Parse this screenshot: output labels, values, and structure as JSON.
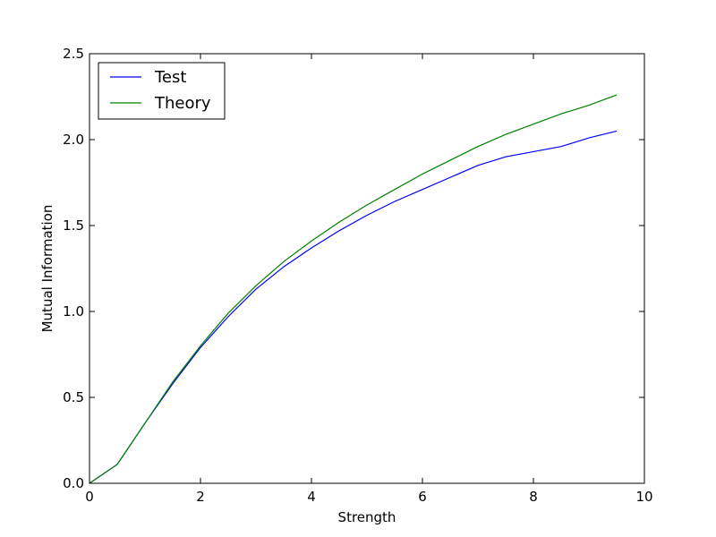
{
  "chart_data": {
    "type": "line",
    "xlabel": "Strength",
    "ylabel": "Mutual Information",
    "xlim": [
      0,
      10
    ],
    "ylim": [
      0,
      2.5
    ],
    "xticks": [
      0,
      2,
      4,
      6,
      8,
      10
    ],
    "xtick_labels": [
      "0",
      "2",
      "4",
      "6",
      "8",
      "10"
    ],
    "yticks": [
      0,
      0.5,
      1,
      1.5,
      2,
      2.5
    ],
    "ytick_labels": [
      "0.0",
      "0.5",
      "1.0",
      "1.5",
      "2.0",
      "2.5"
    ],
    "grid": false,
    "legend_position": "top-left",
    "x": [
      0,
      0.5,
      1.0,
      1.5,
      2.0,
      2.5,
      3.0,
      3.5,
      4.0,
      4.5,
      5.0,
      5.5,
      6.0,
      6.5,
      7.0,
      7.5,
      8.0,
      8.5,
      9.0,
      9.5
    ],
    "series": [
      {
        "name": "Test",
        "color": "#0000ff",
        "values": [
          0.0,
          0.11,
          0.35,
          0.58,
          0.79,
          0.97,
          1.13,
          1.26,
          1.37,
          1.47,
          1.56,
          1.64,
          1.71,
          1.78,
          1.85,
          1.9,
          1.93,
          1.96,
          2.01,
          2.05
        ]
      },
      {
        "name": "Theory",
        "color": "#008000",
        "values": [
          0.0,
          0.11,
          0.35,
          0.59,
          0.8,
          0.99,
          1.15,
          1.29,
          1.41,
          1.52,
          1.62,
          1.71,
          1.8,
          1.88,
          1.96,
          2.03,
          2.09,
          2.15,
          2.2,
          2.26
        ]
      }
    ]
  }
}
